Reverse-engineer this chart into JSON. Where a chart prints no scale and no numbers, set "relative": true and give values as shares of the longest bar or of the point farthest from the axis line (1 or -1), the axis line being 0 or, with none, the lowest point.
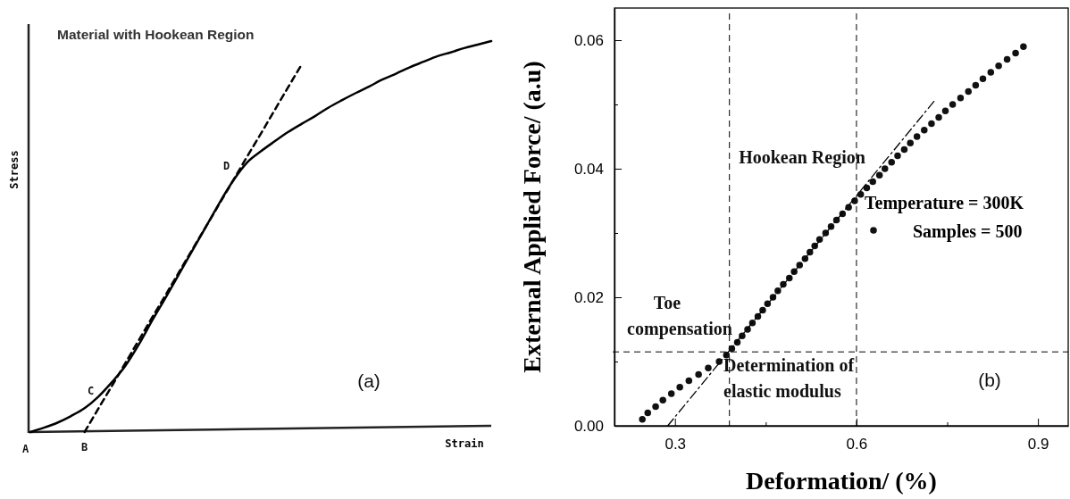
{
  "chart_data": [
    {
      "type": "line",
      "title": "Material with Hookean Region",
      "xlabel": "Strain",
      "ylabel": "Stress",
      "relative": true,
      "categories": [
        null,
        null,
        null,
        null,
        null,
        null,
        null,
        null,
        null,
        null,
        null,
        null,
        null,
        null,
        null,
        null,
        null,
        null,
        null,
        null,
        null,
        null,
        null,
        null,
        null,
        null,
        null,
        null,
        null,
        null,
        null,
        null,
        null,
        null,
        null
      ],
      "series": [
        {
          "color": "#000000",
          "line_style": "solid",
          "values": [
            0,
            0.011,
            0.024,
            0.041,
            0.061,
            0.09,
            0.127,
            0.169,
            0.224,
            0.286,
            0.345,
            0.406,
            0.467,
            0.528,
            0.589,
            0.645,
            0.69,
            0.718,
            0.743,
            0.767,
            0.788,
            0.808,
            0.83,
            0.849,
            0.867,
            0.884,
            0.902,
            0.917,
            0.933,
            0.947,
            0.961,
            0.971,
            0.982,
            0.991,
            1
          ]
        },
        {
          "color": "#000000",
          "line_style": "dashed",
          "values": [
            null,
            null,
            null,
            null,
            0,
            0.059,
            0.117,
            0.176,
            0.235,
            0.294,
            0.352,
            0.411,
            0.47,
            0.528,
            0.587,
            0.646,
            0.705,
            0.763,
            0.822,
            0.881,
            0.939,
            null,
            null,
            null,
            null,
            null,
            null,
            null,
            null,
            null,
            null,
            null,
            null,
            null,
            null
          ]
        }
      ],
      "annotations": [
        "A",
        "B",
        "C",
        "D",
        "(a)"
      ]
    },
    {
      "type": "scatter",
      "xlabel": "Deformation/ (%)",
      "ylabel": "External Applied Force/  (a.u)",
      "legend_title": "Temperature = 300K",
      "legend": "right",
      "xlim": [
        0.2,
        0.95
      ],
      "xticks": [
        0.3,
        {
          "value": 0.45,
          "label": null
        },
        0.6,
        {
          "value": 0.75,
          "label": null
        },
        0.9
      ],
      "ylim": [
        0,
        0.065
      ],
      "yticks": [
        {
          "value": 0,
          "label": "0.00"
        },
        {
          "value": 0.01,
          "label": null
        },
        {
          "value": 0.02,
          "label": "0.02"
        },
        {
          "value": 0.03,
          "label": null
        },
        {
          "value": 0.04,
          "label": "0.04"
        },
        {
          "value": 0.05,
          "label": null
        },
        {
          "value": 0.06,
          "label": "0.06"
        }
      ],
      "grid": false,
      "marker": "circle",
      "series": [
        {
          "name": "Samples = 500",
          "color": "#111111",
          "x": [
            0.246,
            0.255,
            0.268,
            0.28,
            0.294,
            0.308,
            0.323,
            0.339,
            0.355,
            0.373,
            0.385,
            0.394,
            0.403,
            0.411,
            0.42,
            0.428,
            0.437,
            0.445,
            0.453,
            0.462,
            0.47,
            0.479,
            0.489,
            0.497,
            0.506,
            0.515,
            0.523,
            0.531,
            0.539,
            0.549,
            0.558,
            0.567,
            0.577,
            0.587,
            0.597,
            0.607,
            0.617,
            0.627,
            0.638,
            0.647,
            0.658,
            0.668,
            0.679,
            0.689,
            0.7,
            0.712,
            0.724,
            0.736,
            0.747,
            0.759,
            0.772,
            0.785,
            0.797,
            0.809,
            0.822,
            0.835,
            0.849,
            0.863,
            0.876
          ],
          "values": [
            0.001,
            0.002,
            0.003,
            0.004,
            0.005,
            0.006,
            0.007,
            0.008,
            0.009,
            0.01,
            0.011,
            0.012,
            0.013,
            0.014,
            0.015,
            0.016,
            0.017,
            0.018,
            0.019,
            0.02,
            0.021,
            0.022,
            0.023,
            0.024,
            0.025,
            0.026,
            0.027,
            0.028,
            0.029,
            0.03,
            0.031,
            0.032,
            0.033,
            0.034,
            0.035,
            0.036,
            0.037,
            0.038,
            0.039,
            0.04,
            0.041,
            0.042,
            0.043,
            0.044,
            0.045,
            0.046,
            0.047,
            0.048,
            0.049,
            0.05,
            0.051,
            0.052,
            0.053,
            0.054,
            0.055,
            0.056,
            0.057,
            0.058,
            0.059
          ]
        },
        {
          "type": "line",
          "color": "#000000",
          "line_style": "dashed",
          "marker": "none",
          "x": [
            0.288,
            0.73
          ],
          "values": [
            0,
            0.0507
          ]
        }
      ],
      "ref_lines": [
        {
          "axis": "x",
          "value": 0.39,
          "line_style": "dashed"
        },
        {
          "axis": "x",
          "value": 0.6,
          "line_style": "dashed"
        },
        {
          "axis": "y",
          "value": 0.0115,
          "line_style": "dashed"
        }
      ],
      "annotations": [
        "Hookean Region",
        "Toe\ncompensation",
        "Determination of\nelastic modulus",
        "(b)"
      ]
    }
  ]
}
